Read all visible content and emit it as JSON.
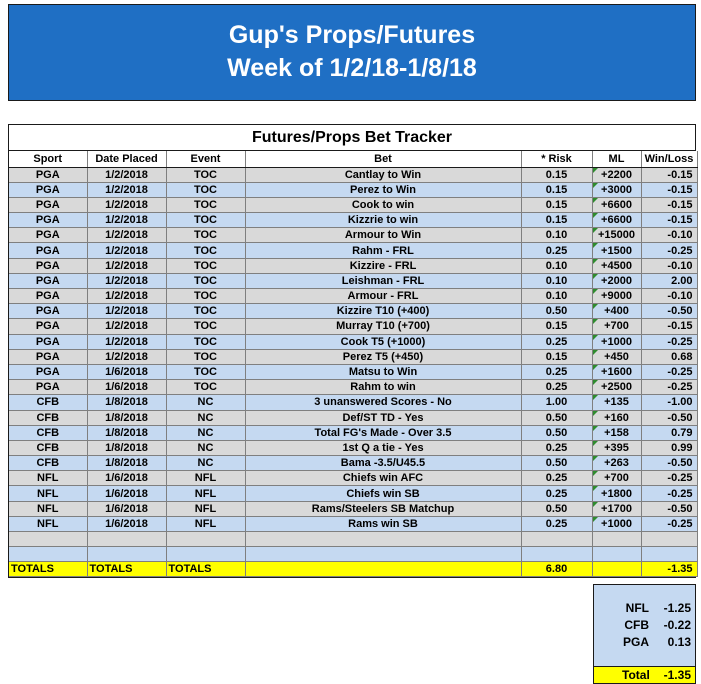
{
  "banner": {
    "line1": "Gup's Props/Futures",
    "line2": "Week of 1/2/18-1/8/18",
    "color": "#1f6fc4"
  },
  "tracker": {
    "title": "Futures/Props Bet Tracker",
    "headers": [
      "Sport",
      "Date Placed",
      "Event",
      "Bet",
      "* Risk",
      "ML",
      "Win/Loss"
    ],
    "rows": [
      {
        "sport": "PGA",
        "date": "1/2/2018",
        "event": "TOC",
        "bet": "Cantlay to Win",
        "risk": "0.15",
        "ml": "+2200",
        "wl": "-0.15",
        "shade": "gray"
      },
      {
        "sport": "PGA",
        "date": "1/2/2018",
        "event": "TOC",
        "bet": "Perez to Win",
        "risk": "0.15",
        "ml": "+3000",
        "wl": "-0.15",
        "shade": "blue"
      },
      {
        "sport": "PGA",
        "date": "1/2/2018",
        "event": "TOC",
        "bet": "Cook to win",
        "risk": "0.15",
        "ml": "+6600",
        "wl": "-0.15",
        "shade": "gray"
      },
      {
        "sport": "PGA",
        "date": "1/2/2018",
        "event": "TOC",
        "bet": "Kizzrie to win",
        "risk": "0.15",
        "ml": "+6600",
        "wl": "-0.15",
        "shade": "blue"
      },
      {
        "sport": "PGA",
        "date": "1/2/2018",
        "event": "TOC",
        "bet": "Armour to Win",
        "risk": "0.10",
        "ml": "+15000",
        "wl": "-0.10",
        "shade": "gray"
      },
      {
        "sport": "PGA",
        "date": "1/2/2018",
        "event": "TOC",
        "bet": "Rahm - FRL",
        "risk": "0.25",
        "ml": "+1500",
        "wl": "-0.25",
        "shade": "blue"
      },
      {
        "sport": "PGA",
        "date": "1/2/2018",
        "event": "TOC",
        "bet": "Kizzire - FRL",
        "risk": "0.10",
        "ml": "+4500",
        "wl": "-0.10",
        "shade": "gray"
      },
      {
        "sport": "PGA",
        "date": "1/2/2018",
        "event": "TOC",
        "bet": "Leishman - FRL",
        "risk": "0.10",
        "ml": "+2000",
        "wl": "2.00",
        "shade": "blue"
      },
      {
        "sport": "PGA",
        "date": "1/2/2018",
        "event": "TOC",
        "bet": "Armour - FRL",
        "risk": "0.10",
        "ml": "+9000",
        "wl": "-0.10",
        "shade": "gray"
      },
      {
        "sport": "PGA",
        "date": "1/2/2018",
        "event": "TOC",
        "bet": "Kizzire T10 (+400)",
        "risk": "0.50",
        "ml": "+400",
        "wl": "-0.50",
        "shade": "blue"
      },
      {
        "sport": "PGA",
        "date": "1/2/2018",
        "event": "TOC",
        "bet": "Murray T10 (+700)",
        "risk": "0.15",
        "ml": "+700",
        "wl": "-0.15",
        "shade": "gray"
      },
      {
        "sport": "PGA",
        "date": "1/2/2018",
        "event": "TOC",
        "bet": "Cook T5 (+1000)",
        "risk": "0.25",
        "ml": "+1000",
        "wl": "-0.25",
        "shade": "blue"
      },
      {
        "sport": "PGA",
        "date": "1/2/2018",
        "event": "TOC",
        "bet": "Perez T5 (+450)",
        "risk": "0.15",
        "ml": "+450",
        "wl": "0.68",
        "shade": "gray"
      },
      {
        "sport": "PGA",
        "date": "1/6/2018",
        "event": "TOC",
        "bet": "Matsu to Win",
        "risk": "0.25",
        "ml": "+1600",
        "wl": "-0.25",
        "shade": "blue"
      },
      {
        "sport": "PGA",
        "date": "1/6/2018",
        "event": "TOC",
        "bet": "Rahm to win",
        "risk": "0.25",
        "ml": "+2500",
        "wl": "-0.25",
        "shade": "gray"
      },
      {
        "sport": "CFB",
        "date": "1/8/2018",
        "event": "NC",
        "bet": "3 unanswered Scores - No",
        "risk": "1.00",
        "ml": "+135",
        "wl": "-1.00",
        "shade": "blue"
      },
      {
        "sport": "CFB",
        "date": "1/8/2018",
        "event": "NC",
        "bet": "Def/ST TD - Yes",
        "risk": "0.50",
        "ml": "+160",
        "wl": "-0.50",
        "shade": "gray"
      },
      {
        "sport": "CFB",
        "date": "1/8/2018",
        "event": "NC",
        "bet": "Total FG's Made - Over 3.5",
        "risk": "0.50",
        "ml": "+158",
        "wl": "0.79",
        "shade": "blue"
      },
      {
        "sport": "CFB",
        "date": "1/8/2018",
        "event": "NC",
        "bet": "1st Q a tie - Yes",
        "risk": "0.25",
        "ml": "+395",
        "wl": "0.99",
        "shade": "gray"
      },
      {
        "sport": "CFB",
        "date": "1/8/2018",
        "event": "NC",
        "bet": "Bama -3.5/U45.5",
        "risk": "0.50",
        "ml": "+263",
        "wl": "-0.50",
        "shade": "blue"
      },
      {
        "sport": "NFL",
        "date": "1/6/2018",
        "event": "NFL",
        "bet": "Chiefs win AFC",
        "risk": "0.25",
        "ml": "+700",
        "wl": "-0.25",
        "shade": "gray"
      },
      {
        "sport": "NFL",
        "date": "1/6/2018",
        "event": "NFL",
        "bet": "Chiefs win SB",
        "risk": "0.25",
        "ml": "+1800",
        "wl": "-0.25",
        "shade": "blue"
      },
      {
        "sport": "NFL",
        "date": "1/6/2018",
        "event": "NFL",
        "bet": "Rams/Steelers SB Matchup",
        "risk": "0.50",
        "ml": "+1700",
        "wl": "-0.50",
        "shade": "gray"
      },
      {
        "sport": "NFL",
        "date": "1/6/2018",
        "event": "NFL",
        "bet": "Rams win SB",
        "risk": "0.25",
        "ml": "+1000",
        "wl": "-0.25",
        "shade": "blue"
      },
      {
        "sport": "",
        "date": "",
        "event": "",
        "bet": "",
        "risk": "",
        "ml": "",
        "wl": "",
        "shade": "gray"
      },
      {
        "sport": "",
        "date": "",
        "event": "",
        "bet": "",
        "risk": "",
        "ml": "",
        "wl": "",
        "shade": "blue"
      }
    ],
    "totals": {
      "sport": "TOTALS",
      "date": "TOTALS",
      "event": "TOTALS",
      "risk": "6.80",
      "wl": "-1.35"
    }
  },
  "summary": {
    "rows": [
      {
        "label": "NFL",
        "value": "-1.25"
      },
      {
        "label": "CFB",
        "value": "-0.22"
      },
      {
        "label": "PGA",
        "value": "0.13"
      }
    ],
    "total_label": "Total",
    "total_value": "-1.35"
  }
}
